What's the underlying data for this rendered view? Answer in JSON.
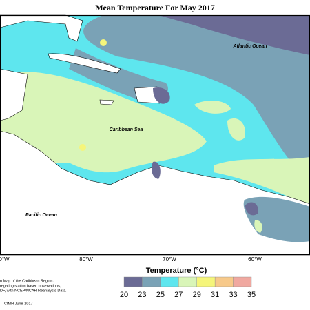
{
  "header": {
    "title": "Mean Temperature For May 2017"
  },
  "map": {
    "labels": [
      "Atlantic Ocean",
      "Caribbean Sea",
      "Pacific Ocean"
    ],
    "longitudes": [
      "0°W",
      "80°W",
      "70°W",
      "60°W"
    ]
  },
  "legend": {
    "title": "Temperature (°C)",
    "ticks": [
      20,
      23,
      25,
      27,
      29,
      31,
      33,
      35
    ],
    "colors": [
      "#6b6b95",
      "#7aa2b6",
      "#5ee6ee",
      "#d9f5b8",
      "#f5f57a",
      "#f7c98a",
      "#f0a8a0"
    ]
  },
  "footnote": {
    "lines": [
      "n Map of the Caribbean Region.",
      "regating station based observations,",
      "DF, with NCEP/NCAR Reanalysis Data."
    ],
    "credit": "CIMH June-2017"
  }
}
